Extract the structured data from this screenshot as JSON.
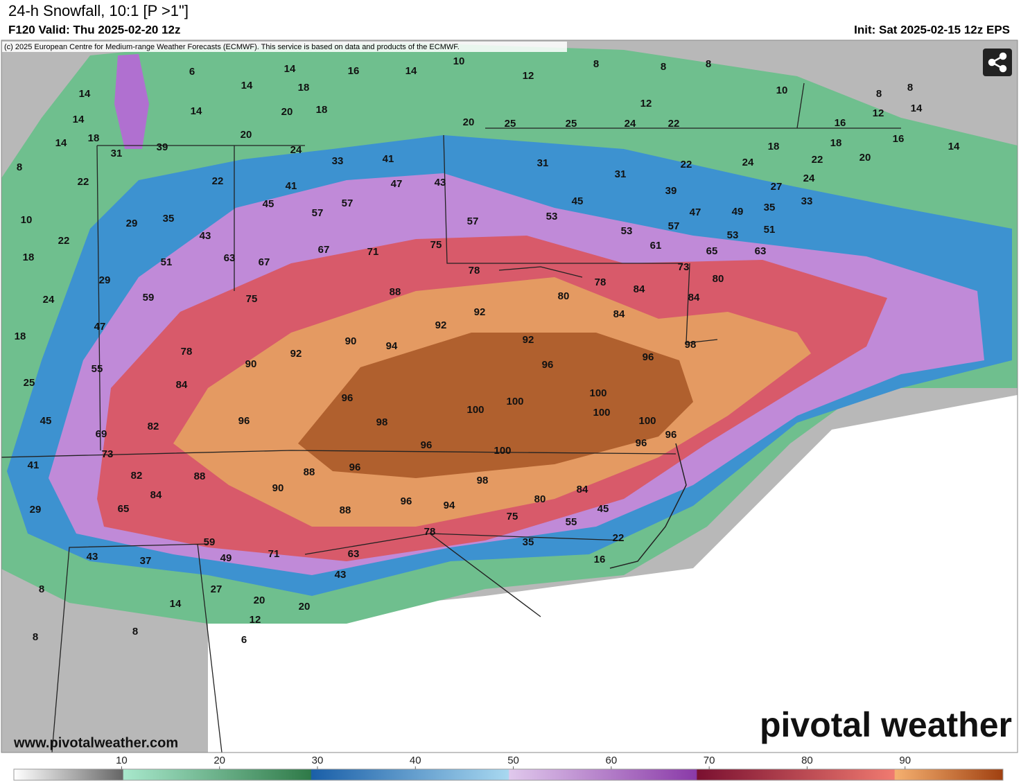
{
  "header": {
    "title": "24-h Snowfall, 10:1 [P >1\"]",
    "valid": "F120 Valid: Thu 2025-02-20 12z",
    "init": "Init: Sat 2025-02-15 12z EPS"
  },
  "map": {
    "copyright": "(c) 2025 European Centre for Medium-range Weather Forecasts (ECMWF). This service is based on data and products of the ECMWF.",
    "labels": [
      6,
      14,
      16,
      14,
      10,
      12,
      8,
      8,
      8,
      14,
      14,
      18,
      10,
      8,
      8,
      14,
      14,
      20,
      18,
      12,
      12,
      14,
      14,
      18,
      20,
      20,
      25,
      25,
      24,
      22,
      16,
      31,
      39,
      24,
      18,
      18,
      16,
      14,
      8,
      33,
      41,
      31,
      22,
      24,
      22,
      20,
      22,
      22,
      41,
      47,
      43,
      31,
      24,
      45,
      57,
      45,
      39,
      27,
      35,
      33,
      10,
      29,
      35,
      57,
      57,
      53,
      47,
      49,
      22,
      43,
      53,
      57,
      53,
      51,
      18,
      51,
      63,
      67,
      67,
      71,
      75,
      61,
      65,
      63,
      29,
      78,
      73,
      80,
      24,
      59,
      75,
      88,
      78,
      84,
      84,
      80,
      47,
      92,
      84,
      92,
      18,
      78,
      92,
      90,
      94,
      92,
      98,
      55,
      90,
      96,
      96,
      25,
      84,
      96,
      100,
      100,
      45,
      96,
      82,
      98,
      100,
      100,
      100,
      69,
      96,
      96,
      96,
      73,
      100,
      41,
      82,
      88,
      88,
      96,
      98,
      90,
      84,
      84,
      80,
      96,
      94,
      65,
      29,
      88,
      45,
      75,
      55,
      78,
      22,
      35,
      59,
      71,
      43,
      37,
      49,
      63,
      16,
      43,
      8,
      27,
      20,
      20,
      14,
      12,
      8,
      8,
      6
    ],
    "website": "www.pivotalweather.com",
    "logo": "pivotal weather"
  },
  "colorbar": {
    "ticks": [
      10,
      20,
      30,
      40,
      50,
      60,
      70,
      80,
      90
    ],
    "range": [
      -1,
      100
    ]
  }
}
